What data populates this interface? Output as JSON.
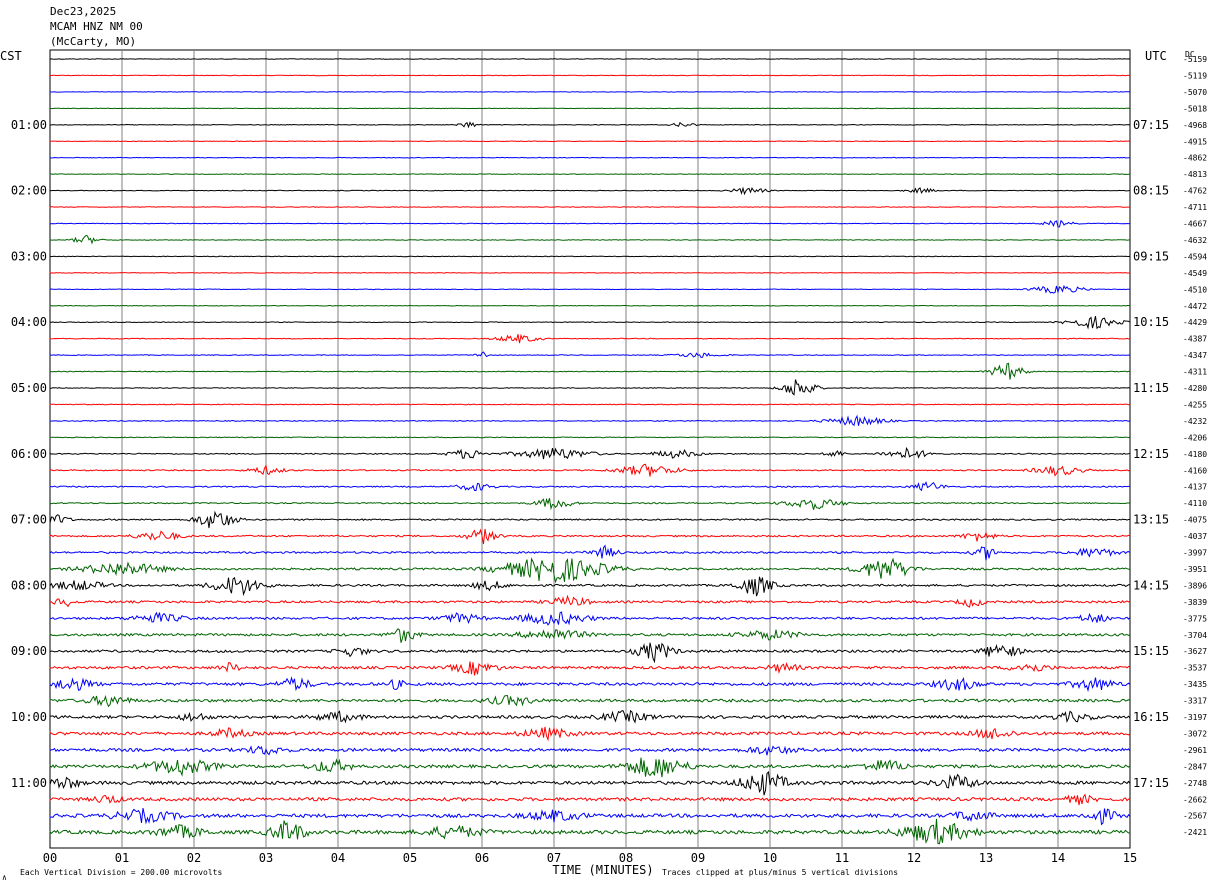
{
  "header": {
    "date": "Dec23,2025",
    "station": "MCAM HNZ NM 00",
    "location": "(McCarty, MO)"
  },
  "labels": {
    "left_zone": "CST",
    "right_zone": "UTC",
    "dc": "DC",
    "x_title": "TIME (MINUTES)",
    "footer_left": "Each Vertical Division =  200.00 microvolts",
    "footer_right": "Traces clipped at plus/minus 5 vertical divisions",
    "corner_mark": "∧"
  },
  "colors": {
    "trace_cycle": [
      "#000000",
      "#ff0000",
      "#0000ff",
      "#006400"
    ],
    "grid": "#808080"
  },
  "chart_data": {
    "type": "line",
    "title": "MCAM HNZ NM 00",
    "xlabel": "TIME (MINUTES)",
    "x_ticks": [
      "00",
      "01",
      "02",
      "03",
      "04",
      "05",
      "06",
      "07",
      "08",
      "09",
      "10",
      "11",
      "12",
      "13",
      "14",
      "15"
    ],
    "xlim": [
      0,
      15
    ],
    "rows": 48,
    "minutes_per_row": 15,
    "left_hour_labels": [
      "01:00",
      "02:00",
      "03:00",
      "04:00",
      "05:00",
      "06:00",
      "07:00",
      "08:00",
      "09:00",
      "10:00",
      "11:00"
    ],
    "right_hour_labels": [
      "07:15",
      "08:15",
      "09:15",
      "10:15",
      "11:15",
      "12:15",
      "13:15",
      "14:15",
      "15:15",
      "16:15",
      "17:15"
    ],
    "dc_offsets": [
      "-5159",
      "-5119",
      "-5070",
      "-5018",
      "-4968",
      "-4915",
      "-4862",
      "-4813",
      "-4762",
      "-4711",
      "-4667",
      "-4632",
      "-4594",
      "-4549",
      "-4510",
      "-4472",
      "-4429",
      "-4387",
      "-4347",
      "-4311",
      "-4280",
      "-4255",
      "-4232",
      "-4206",
      "-4180",
      "-4160",
      "-4137",
      "-4110",
      "-4075",
      "-4037",
      "-3997",
      "-3951",
      "-3896",
      "-3839",
      "-3775",
      "-3704",
      "-3627",
      "-3537",
      "-3435",
      "-3317",
      "-3197",
      "-3072",
      "-2961",
      "-2847",
      "-2748",
      "-2662",
      "-2567",
      "-2421"
    ],
    "noise_level": [
      0.25,
      0.25,
      0.25,
      0.25,
      0.3,
      0.3,
      0.3,
      0.3,
      0.3,
      0.3,
      0.3,
      0.3,
      0.3,
      0.3,
      0.3,
      0.3,
      0.35,
      0.35,
      0.35,
      0.35,
      0.35,
      0.4,
      0.4,
      0.4,
      0.5,
      0.55,
      0.6,
      0.6,
      0.7,
      0.8,
      0.9,
      1.0,
      1.0,
      1.1,
      1.1,
      1.2,
      1.2,
      1.3,
      1.4,
      1.4,
      1.4,
      1.5,
      1.5,
      1.5,
      1.6,
      1.6,
      1.7,
      1.8
    ],
    "events": [
      {
        "row": 4,
        "minute": 5.8,
        "amplitude": 4,
        "duration": 0.3
      },
      {
        "row": 4,
        "minute": 8.8,
        "amplitude": 3,
        "duration": 0.4
      },
      {
        "row": 8,
        "minute": 9.7,
        "amplitude": 4,
        "duration": 0.6
      },
      {
        "row": 8,
        "minute": 12.1,
        "amplitude": 3,
        "duration": 0.5
      },
      {
        "row": 10,
        "minute": 14.0,
        "amplitude": 4,
        "duration": 0.5
      },
      {
        "row": 11,
        "minute": 0.5,
        "amplitude": 5,
        "duration": 0.4
      },
      {
        "row": 14,
        "minute": 14.0,
        "amplitude": 5,
        "duration": 0.8
      },
      {
        "row": 16,
        "minute": 14.5,
        "amplitude": 7,
        "duration": 0.8
      },
      {
        "row": 17,
        "minute": 6.5,
        "amplitude": 5,
        "duration": 0.7
      },
      {
        "row": 18,
        "minute": 6.0,
        "amplitude": 5,
        "duration": 0.2
      },
      {
        "row": 18,
        "minute": 9.0,
        "amplitude": 3,
        "duration": 0.8
      },
      {
        "row": 19,
        "minute": 13.3,
        "amplitude": 10,
        "duration": 0.5
      },
      {
        "row": 20,
        "minute": 10.4,
        "amplitude": 12,
        "duration": 0.5
      },
      {
        "row": 22,
        "minute": 11.2,
        "amplitude": 6,
        "duration": 0.9
      },
      {
        "row": 24,
        "minute": 5.8,
        "amplitude": 6,
        "duration": 0.6
      },
      {
        "row": 24,
        "minute": 7.0,
        "amplitude": 7,
        "duration": 1.2
      },
      {
        "row": 24,
        "minute": 8.7,
        "amplitude": 5,
        "duration": 0.8
      },
      {
        "row": 24,
        "minute": 10.9,
        "amplitude": 5,
        "duration": 0.3
      },
      {
        "row": 24,
        "minute": 11.9,
        "amplitude": 6,
        "duration": 0.8
      },
      {
        "row": 25,
        "minute": 3.0,
        "amplitude": 5,
        "duration": 0.6
      },
      {
        "row": 25,
        "minute": 8.3,
        "amplitude": 7,
        "duration": 1.0
      },
      {
        "row": 25,
        "minute": 14.0,
        "amplitude": 6,
        "duration": 0.8
      },
      {
        "row": 26,
        "minute": 5.9,
        "amplitude": 5,
        "duration": 0.6
      },
      {
        "row": 26,
        "minute": 12.2,
        "amplitude": 6,
        "duration": 0.5
      },
      {
        "row": 27,
        "minute": 7.0,
        "amplitude": 7,
        "duration": 0.6
      },
      {
        "row": 27,
        "minute": 10.6,
        "amplitude": 7,
        "duration": 0.9
      },
      {
        "row": 28,
        "minute": 0.1,
        "amplitude": 6,
        "duration": 0.4
      },
      {
        "row": 28,
        "minute": 2.3,
        "amplitude": 12,
        "duration": 0.6
      },
      {
        "row": 29,
        "minute": 1.5,
        "amplitude": 6,
        "duration": 0.8
      },
      {
        "row": 29,
        "minute": 6.0,
        "amplitude": 9,
        "duration": 0.5
      },
      {
        "row": 29,
        "minute": 12.9,
        "amplitude": 6,
        "duration": 0.6
      },
      {
        "row": 30,
        "minute": 7.7,
        "amplitude": 7,
        "duration": 0.5
      },
      {
        "row": 30,
        "minute": 13.0,
        "amplitude": 8,
        "duration": 0.4
      },
      {
        "row": 30,
        "minute": 14.5,
        "amplitude": 6,
        "duration": 0.8
      },
      {
        "row": 31,
        "minute": 1.0,
        "amplitude": 8,
        "duration": 1.4
      },
      {
        "row": 31,
        "minute": 7.0,
        "amplitude": 16,
        "duration": 1.6
      },
      {
        "row": 31,
        "minute": 11.6,
        "amplitude": 14,
        "duration": 0.8
      },
      {
        "row": 32,
        "minute": 0.4,
        "amplitude": 6,
        "duration": 1.0
      },
      {
        "row": 32,
        "minute": 2.6,
        "amplitude": 12,
        "duration": 0.8
      },
      {
        "row": 32,
        "minute": 6.1,
        "amplitude": 6,
        "duration": 0.6
      },
      {
        "row": 32,
        "minute": 9.8,
        "amplitude": 12,
        "duration": 0.6
      },
      {
        "row": 33,
        "minute": 0.2,
        "amplitude": 6,
        "duration": 0.4
      },
      {
        "row": 33,
        "minute": 7.2,
        "amplitude": 6,
        "duration": 0.8
      },
      {
        "row": 33,
        "minute": 12.8,
        "amplitude": 6,
        "duration": 0.5
      },
      {
        "row": 34,
        "minute": 1.5,
        "amplitude": 6,
        "duration": 1.0
      },
      {
        "row": 34,
        "minute": 5.7,
        "amplitude": 6,
        "duration": 0.8
      },
      {
        "row": 34,
        "minute": 7.0,
        "amplitude": 8,
        "duration": 1.2
      },
      {
        "row": 34,
        "minute": 14.5,
        "amplitude": 6,
        "duration": 0.6
      },
      {
        "row": 35,
        "minute": 4.9,
        "amplitude": 9,
        "duration": 0.5
      },
      {
        "row": 35,
        "minute": 7.0,
        "amplitude": 7,
        "duration": 1.2
      },
      {
        "row": 35,
        "minute": 10.0,
        "amplitude": 6,
        "duration": 1.2
      },
      {
        "row": 36,
        "minute": 4.2,
        "amplitude": 6,
        "duration": 0.6
      },
      {
        "row": 36,
        "minute": 8.4,
        "amplitude": 12,
        "duration": 0.6
      },
      {
        "row": 36,
        "minute": 13.2,
        "amplitude": 10,
        "duration": 0.6
      },
      {
        "row": 37,
        "minute": 2.5,
        "amplitude": 6,
        "duration": 0.4
      },
      {
        "row": 37,
        "minute": 5.9,
        "amplitude": 8,
        "duration": 0.8
      },
      {
        "row": 37,
        "minute": 10.2,
        "amplitude": 6,
        "duration": 0.6
      },
      {
        "row": 37,
        "minute": 13.6,
        "amplitude": 6,
        "duration": 0.8
      },
      {
        "row": 38,
        "minute": 0.3,
        "amplitude": 8,
        "duration": 0.8
      },
      {
        "row": 38,
        "minute": 3.4,
        "amplitude": 8,
        "duration": 0.6
      },
      {
        "row": 38,
        "minute": 4.8,
        "amplitude": 6,
        "duration": 0.4
      },
      {
        "row": 38,
        "minute": 12.6,
        "amplitude": 8,
        "duration": 0.8
      },
      {
        "row": 38,
        "minute": 14.5,
        "amplitude": 8,
        "duration": 0.8
      },
      {
        "row": 39,
        "minute": 0.8,
        "amplitude": 7,
        "duration": 0.8
      },
      {
        "row": 39,
        "minute": 6.4,
        "amplitude": 6,
        "duration": 1.0
      },
      {
        "row": 40,
        "minute": 2.0,
        "amplitude": 6,
        "duration": 0.6
      },
      {
        "row": 40,
        "minute": 4.0,
        "amplitude": 6,
        "duration": 1.0
      },
      {
        "row": 40,
        "minute": 8.0,
        "amplitude": 7,
        "duration": 1.0
      },
      {
        "row": 40,
        "minute": 14.2,
        "amplitude": 6,
        "duration": 0.8
      },
      {
        "row": 41,
        "minute": 2.5,
        "amplitude": 6,
        "duration": 0.8
      },
      {
        "row": 41,
        "minute": 6.9,
        "amplitude": 7,
        "duration": 1.0
      },
      {
        "row": 41,
        "minute": 13.1,
        "amplitude": 7,
        "duration": 0.8
      },
      {
        "row": 42,
        "minute": 3.0,
        "amplitude": 6,
        "duration": 0.8
      },
      {
        "row": 42,
        "minute": 10.0,
        "amplitude": 6,
        "duration": 1.0
      },
      {
        "row": 43,
        "minute": 1.8,
        "amplitude": 10,
        "duration": 1.2
      },
      {
        "row": 43,
        "minute": 3.9,
        "amplitude": 8,
        "duration": 0.8
      },
      {
        "row": 43,
        "minute": 8.4,
        "amplitude": 14,
        "duration": 1.0
      },
      {
        "row": 43,
        "minute": 11.6,
        "amplitude": 8,
        "duration": 0.8
      },
      {
        "row": 44,
        "minute": 0.2,
        "amplitude": 8,
        "duration": 0.6
      },
      {
        "row": 44,
        "minute": 9.9,
        "amplitude": 14,
        "duration": 0.8
      },
      {
        "row": 44,
        "minute": 12.6,
        "amplitude": 9,
        "duration": 0.8
      },
      {
        "row": 45,
        "minute": 0.8,
        "amplitude": 6,
        "duration": 0.6
      },
      {
        "row": 45,
        "minute": 14.3,
        "amplitude": 6,
        "duration": 0.6
      },
      {
        "row": 46,
        "minute": 1.3,
        "amplitude": 8,
        "duration": 1.2
      },
      {
        "row": 46,
        "minute": 7.0,
        "amplitude": 7,
        "duration": 1.2
      },
      {
        "row": 46,
        "minute": 12.8,
        "amplitude": 7,
        "duration": 0.8
      },
      {
        "row": 46,
        "minute": 14.6,
        "amplitude": 9,
        "duration": 0.6
      },
      {
        "row": 47,
        "minute": 1.8,
        "amplitude": 8,
        "duration": 1.0
      },
      {
        "row": 47,
        "minute": 3.3,
        "amplitude": 14,
        "duration": 0.6
      },
      {
        "row": 47,
        "minute": 5.6,
        "amplitude": 8,
        "duration": 1.2
      },
      {
        "row": 47,
        "minute": 12.3,
        "amplitude": 14,
        "duration": 1.2
      }
    ]
  }
}
